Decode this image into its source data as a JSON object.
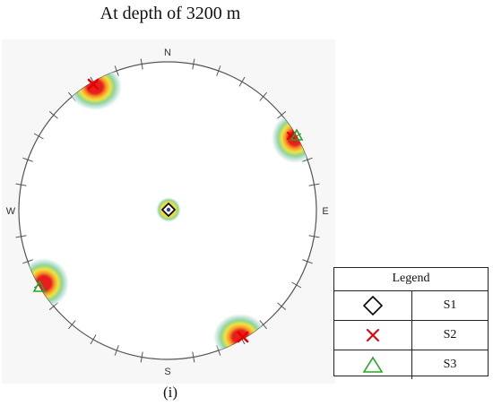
{
  "title": "At depth of 3200 m",
  "caption": "(i)",
  "stereonet": {
    "compass": {
      "north": "N",
      "east": "E",
      "south": "S",
      "west": "W"
    }
  },
  "legend": {
    "header": "Legend",
    "items": [
      {
        "symbol": "diamond-icon",
        "label": "S1",
        "color": "#000000"
      },
      {
        "symbol": "cross-icon",
        "label": "S2",
        "color": "#e60000"
      },
      {
        "symbol": "triangle-icon",
        "label": "S3",
        "color": "#22aa22"
      }
    ]
  },
  "colors": {
    "contour_outer": "#cfe9e4",
    "contour_mid1": "#8fd59a",
    "contour_mid2": "#f2e23a",
    "contour_mid3": "#f59a2a",
    "contour_core": "#e81e1e"
  }
}
